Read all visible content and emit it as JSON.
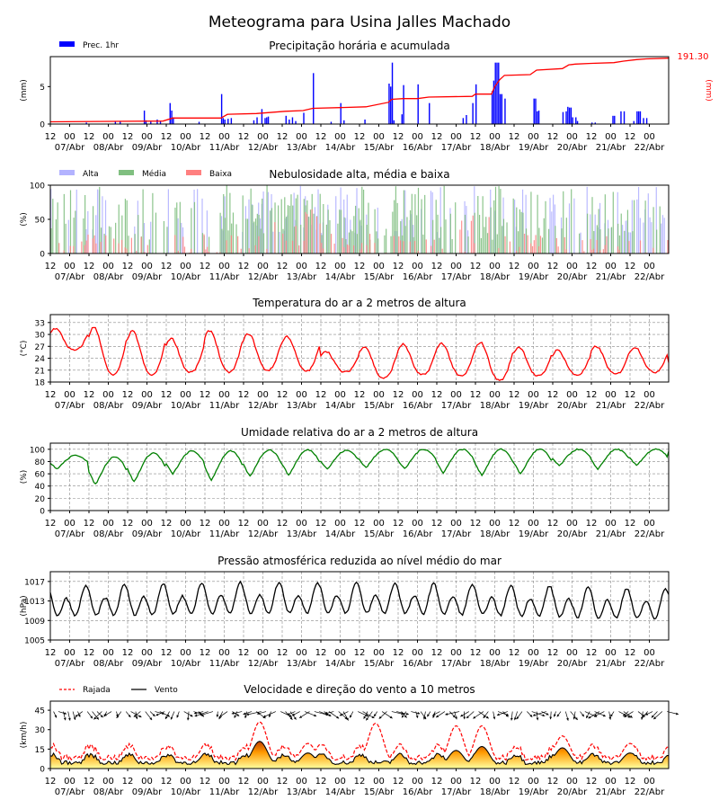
{
  "title": "Meteograma para Usina Jalles Machado",
  "time_axis": {
    "hour_labels": [
      "12",
      "00",
      "12",
      "00",
      "12",
      "00",
      "12",
      "00",
      "12",
      "00",
      "12",
      "00",
      "12",
      "00",
      "12",
      "00",
      "12",
      "00",
      "12",
      "00",
      "12",
      "00",
      "12",
      "00",
      "12",
      "00",
      "12",
      "00",
      "12",
      "00",
      "12",
      "00"
    ],
    "day_labels": [
      "07/Abr",
      "08/Abr",
      "09/Abr",
      "10/Abr",
      "11/Abr",
      "12/Abr",
      "13/Abr",
      "14/Abr",
      "15/Abr",
      "16/Abr",
      "17/Abr",
      "18/Abr",
      "19/Abr",
      "20/Abr",
      "21/Abr",
      "22/Abr"
    ],
    "start": "07/Abr 12h",
    "hours_total": 384,
    "step_hours": 1
  },
  "chart_data": [
    {
      "id": "precip",
      "type": "bar",
      "title": "Precipitação horária e acumulada",
      "ylabel": "(mm)",
      "ylabel_right": "(mm)",
      "ylim": [
        0,
        9
      ],
      "yticks": [
        0,
        5
      ],
      "legend": [
        {
          "name": "Prec. 1hr",
          "color": "#0000ff"
        }
      ],
      "accum_total_label": "191.30",
      "colors": {
        "bars": "#0000ff",
        "accum": "#ff0000"
      },
      "series": [
        {
          "name": "Prec. 1hr",
          "events": [
            [
              22,
              0.2
            ],
            [
              40,
              0.3
            ],
            [
              43,
              0.4
            ],
            [
              58,
              1.8
            ],
            [
              59,
              0.5
            ],
            [
              62,
              0.3
            ],
            [
              66,
              0.6
            ],
            [
              68,
              0.4
            ],
            [
              74,
              2.8
            ],
            [
              75,
              1.8
            ],
            [
              76,
              0.9
            ],
            [
              92,
              0.3
            ],
            [
              106,
              4.0
            ],
            [
              107,
              0.8
            ],
            [
              108,
              0.6
            ],
            [
              110,
              0.7
            ],
            [
              112,
              0.8
            ],
            [
              126,
              0.5
            ],
            [
              128,
              0.9
            ],
            [
              131,
              2.0
            ],
            [
              133,
              0.8
            ],
            [
              134,
              0.9
            ],
            [
              135,
              1.0
            ],
            [
              146,
              1.1
            ],
            [
              148,
              0.6
            ],
            [
              150,
              0.9
            ],
            [
              152,
              0.4
            ],
            [
              157,
              1.5
            ],
            [
              163,
              6.8
            ],
            [
              174,
              0.3
            ],
            [
              180,
              2.8
            ],
            [
              182,
              0.5
            ],
            [
              195,
              0.6
            ],
            [
              210,
              5.4
            ],
            [
              211,
              5.0
            ],
            [
              212,
              8.2
            ],
            [
              213,
              0.5
            ],
            [
              218,
              1.3
            ],
            [
              219,
              5.2
            ],
            [
              228,
              5.3
            ],
            [
              235,
              2.8
            ],
            [
              256,
              0.8
            ],
            [
              258,
              1.2
            ],
            [
              262,
              2.8
            ],
            [
              264,
              5.3
            ],
            [
              274,
              4.4
            ],
            [
              275,
              5.8
            ],
            [
              276,
              8.2
            ],
            [
              277,
              8.2
            ],
            [
              278,
              8.2
            ],
            [
              279,
              4.0
            ],
            [
              280,
              4.0
            ],
            [
              282,
              3.4
            ],
            [
              300,
              3.4
            ],
            [
              301,
              3.4
            ],
            [
              302,
              1.7
            ],
            [
              303,
              1.8
            ],
            [
              318,
              1.6
            ],
            [
              320,
              1.7
            ],
            [
              321,
              2.3
            ],
            [
              322,
              2.2
            ],
            [
              323,
              2.2
            ],
            [
              324,
              0.9
            ],
            [
              326,
              0.9
            ],
            [
              327,
              0.4
            ],
            [
              336,
              0.2
            ],
            [
              338,
              0.2
            ],
            [
              349,
              1.1
            ],
            [
              350,
              1.1
            ],
            [
              354,
              1.7
            ],
            [
              356,
              1.7
            ],
            [
              362,
              0.4
            ],
            [
              364,
              1.7
            ],
            [
              365,
              1.7
            ],
            [
              366,
              1.7
            ],
            [
              368,
              0.8
            ],
            [
              370,
              0.8
            ]
          ]
        },
        {
          "name": "Acumulada",
          "points": [
            [
              0,
              0.3
            ],
            [
              70,
              0.4
            ],
            [
              76,
              0.8
            ],
            [
              106,
              0.8
            ],
            [
              110,
              1.3
            ],
            [
              128,
              1.4
            ],
            [
              146,
              1.7
            ],
            [
              157,
              1.8
            ],
            [
              163,
              2.1
            ],
            [
              180,
              2.2
            ],
            [
              196,
              2.3
            ],
            [
              210,
              2.9
            ],
            [
              212,
              3.3
            ],
            [
              219,
              3.4
            ],
            [
              228,
              3.4
            ],
            [
              235,
              3.6
            ],
            [
              262,
              3.7
            ],
            [
              264,
              4.0
            ],
            [
              274,
              4.0
            ],
            [
              276,
              5.0
            ],
            [
              279,
              5.9
            ],
            [
              282,
              6.5
            ],
            [
              298,
              6.6
            ],
            [
              302,
              7.2
            ],
            [
              318,
              7.4
            ],
            [
              322,
              7.9
            ],
            [
              326,
              8.0
            ],
            [
              336,
              8.1
            ],
            [
              350,
              8.2
            ],
            [
              356,
              8.4
            ],
            [
              364,
              8.6
            ],
            [
              370,
              8.7
            ],
            [
              384,
              8.8
            ]
          ]
        }
      ]
    },
    {
      "id": "clouds",
      "type": "bar",
      "title": "Nebulosidade alta, média e baixa",
      "ylabel": "(%)",
      "ylim": [
        0,
        100
      ],
      "yticks": [
        0,
        50,
        100
      ],
      "legend": [
        {
          "name": "Alta",
          "color": "#b3b3ff"
        },
        {
          "name": "Média",
          "color": "#80bf80"
        },
        {
          "name": "Baixa",
          "color": "#ff8080"
        }
      ],
      "series": [
        {
          "name": "Alta",
          "profile": "high cloud, peaks near 100% on 13/Abr-15/Abr, 16/Abr, 21/Abr"
        },
        {
          "name": "Média",
          "profile": "mid cloud 40-100% most days, dense 12/Abr-17/Abr and 18/Abr-19/Abr"
        },
        {
          "name": "Baixa",
          "profile": "low cloud mostly 0-30%, peaks ~60% on 13/Abr and 18/Abr"
        }
      ]
    },
    {
      "id": "temp",
      "type": "line",
      "title": "Temperatura do ar a 2 metros de altura",
      "ylabel": "(°C)",
      "ylim": [
        18,
        35
      ],
      "yticks": [
        18,
        21,
        24,
        27,
        30,
        33
      ],
      "color": "#ff0000",
      "series": [
        {
          "name": "Temperatura",
          "daily_minmax": [
            [
              26,
              31.5
            ],
            [
              19.8,
              31.8
            ],
            [
              19.8,
              30.8
            ],
            [
              20.5,
              29.0
            ],
            [
              20.5,
              31.0
            ],
            [
              21.0,
              30.2
            ],
            [
              20.8,
              29.5
            ],
            [
              20.5,
              25.8
            ],
            [
              19.0,
              27.0
            ],
            [
              19.8,
              27.5
            ],
            [
              19.5,
              27.8
            ],
            [
              18.5,
              28.0
            ],
            [
              19.5,
              26.8
            ],
            [
              19.8,
              26.0
            ],
            [
              20.0,
              27.0
            ],
            [
              20.5,
              26.8
            ],
            [
              21.0,
              23.5
            ]
          ]
        }
      ]
    },
    {
      "id": "rh",
      "type": "line",
      "title": "Umidade relativa do ar a 2 metros de altura",
      "ylabel": "(%)",
      "ylim": [
        0,
        110
      ],
      "yticks": [
        0,
        20,
        40,
        60,
        80,
        100
      ],
      "color": "#008000",
      "series": [
        {
          "name": "Umidade",
          "daily_minmax": [
            [
              68,
              90
            ],
            [
              43,
              88
            ],
            [
              47,
              94
            ],
            [
              60,
              97
            ],
            [
              50,
              97
            ],
            [
              56,
              99
            ],
            [
              58,
              99
            ],
            [
              68,
              98
            ],
            [
              70,
              100
            ],
            [
              68,
              100
            ],
            [
              62,
              100
            ],
            [
              58,
              100
            ],
            [
              60,
              100
            ],
            [
              73,
              100
            ],
            [
              68,
              100
            ],
            [
              74,
              100
            ],
            [
              95,
              100
            ]
          ]
        }
      ]
    },
    {
      "id": "pressure",
      "type": "line",
      "title": "Pressão atmosférica reduzida ao nível médio do mar",
      "ylabel": "(hPa)",
      "ylim": [
        1005,
        1019
      ],
      "yticks": [
        1005,
        1009,
        1013,
        1017
      ],
      "color": "#000000",
      "series": [
        {
          "name": "Pressão",
          "range": [
            1007.5,
            1017.2
          ]
        }
      ]
    },
    {
      "id": "wind",
      "type": "area",
      "title": "Velocidade e direção do vento a 10 metros",
      "ylabel": "(km/h)",
      "ylim": [
        0,
        52
      ],
      "yticks": [
        0,
        15,
        30,
        45
      ],
      "legend": [
        {
          "name": "Rajada",
          "color": "#ff0000",
          "style": "dashed"
        },
        {
          "name": "Vento",
          "color": "#000000",
          "style": "solid"
        }
      ],
      "series": [
        {
          "name": "Rajada",
          "peaks": [
            [
              130,
              36
            ],
            [
              202,
              35
            ],
            [
              252,
              33
            ],
            [
              268,
              33
            ],
            [
              318,
              24
            ],
            [
              360,
              17
            ]
          ]
        },
        {
          "name": "Vento",
          "peaks": [
            [
              130,
              21
            ],
            [
              160,
              12
            ],
            [
              252,
              14
            ],
            [
              268,
              17
            ],
            [
              318,
              16
            ],
            [
              360,
              12
            ]
          ]
        }
      ]
    }
  ]
}
